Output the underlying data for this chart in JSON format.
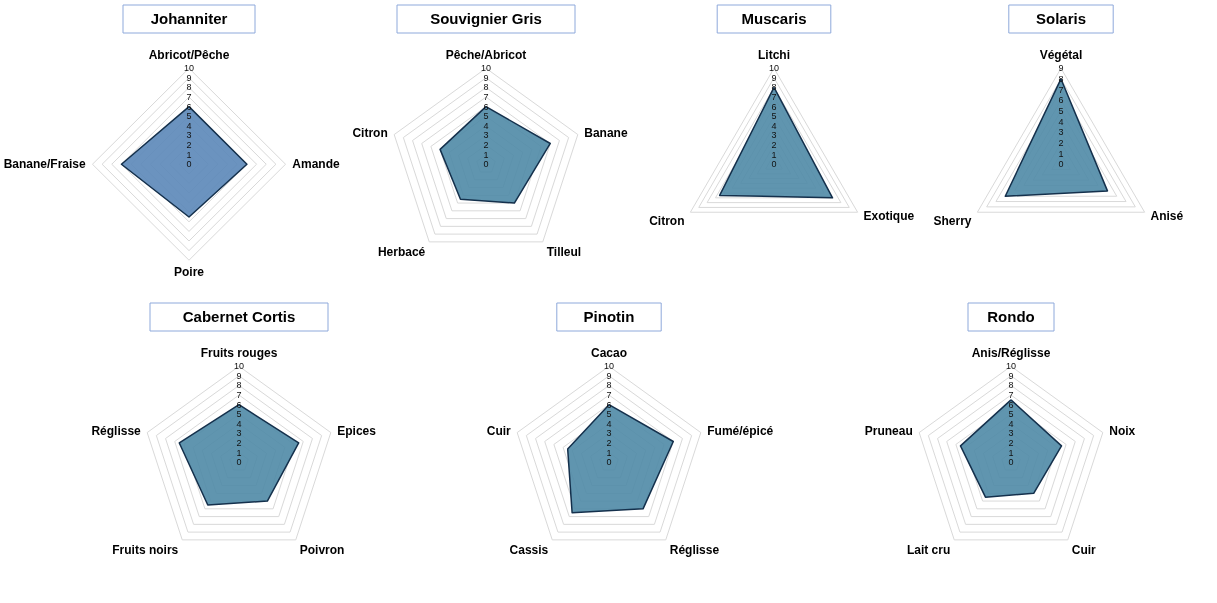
{
  "chart_data": [
    {
      "type": "radar",
      "title": "Johanniter",
      "categories": [
        "Abricot/Pêche",
        "Amande",
        "Poire",
        "Banane/Fraise"
      ],
      "series": [
        {
          "color": "#5b87b8",
          "values": [
            6,
            6,
            5.5,
            7
          ]
        }
      ],
      "ylim": [
        0,
        10
      ],
      "yticks": [
        0,
        1,
        2,
        3,
        4,
        5,
        6,
        7,
        8,
        9,
        10
      ],
      "grid": true
    },
    {
      "type": "radar",
      "title": "Souvignier Gris",
      "categories": [
        "Pêche/Abricot",
        "Banane",
        "Tilleul",
        "Herbacé",
        "Citron"
      ],
      "series": [
        {
          "color": "#4f8aa6",
          "values": [
            6,
            7,
            5,
            4.5,
            5
          ]
        }
      ],
      "ylim": [
        0,
        10
      ],
      "yticks": [
        0,
        1,
        2,
        3,
        4,
        5,
        6,
        7,
        8,
        9,
        10
      ],
      "grid": true
    },
    {
      "type": "radar",
      "title": "Muscaris",
      "categories": [
        "Litchi",
        "Exotique",
        "Citron"
      ],
      "series": [
        {
          "color": "#4f8aa6",
          "values": [
            8,
            7,
            6.5
          ]
        }
      ],
      "ylim": [
        0,
        10
      ],
      "yticks": [
        0,
        1,
        2,
        3,
        4,
        5,
        6,
        7,
        8,
        9,
        10
      ],
      "grid": true
    },
    {
      "type": "radar",
      "title": "Solaris",
      "categories": [
        "Végétal",
        "Anisé",
        "Sherry"
      ],
      "series": [
        {
          "color": "#4f8aa6",
          "values": [
            8,
            5,
            6
          ]
        }
      ],
      "ylim": [
        0,
        9
      ],
      "yticks": [
        0,
        1,
        2,
        3,
        4,
        5,
        6,
        7,
        8,
        9
      ],
      "grid": true
    },
    {
      "type": "radar",
      "title": "Cabernet Cortis",
      "categories": [
        "Fruits rouges",
        "Epices",
        "Poivron",
        "Fruits noirs",
        "Réglisse"
      ],
      "series": [
        {
          "color": "#4f8aa6",
          "values": [
            6,
            6.5,
            5,
            5.5,
            6.5
          ]
        }
      ],
      "ylim": [
        0,
        10
      ],
      "yticks": [
        0,
        1,
        2,
        3,
        4,
        5,
        6,
        7,
        8,
        9,
        10
      ],
      "grid": true
    },
    {
      "type": "radar",
      "title": "Pinotin",
      "categories": [
        "Cacao",
        "Fumé/épicé",
        "Réglisse",
        "Cassis",
        "Cuir"
      ],
      "series": [
        {
          "color": "#4f8aa6",
          "values": [
            6,
            7,
            6,
            6.5,
            4.5
          ]
        }
      ],
      "ylim": [
        0,
        10
      ],
      "yticks": [
        0,
        1,
        2,
        3,
        4,
        5,
        6,
        7,
        8,
        9,
        10
      ],
      "grid": true
    },
    {
      "type": "radar",
      "title": "Rondo",
      "categories": [
        "Anis/Réglisse",
        "Noix",
        "Cuir",
        "Lait cru",
        "Pruneau"
      ],
      "series": [
        {
          "color": "#4f8aa6",
          "values": [
            6.5,
            5.5,
            4,
            4.5,
            5.5
          ]
        }
      ],
      "ylim": [
        0,
        10
      ],
      "yticks": [
        0,
        1,
        2,
        3,
        4,
        5,
        6,
        7,
        8,
        9,
        10
      ],
      "grid": true
    }
  ]
}
